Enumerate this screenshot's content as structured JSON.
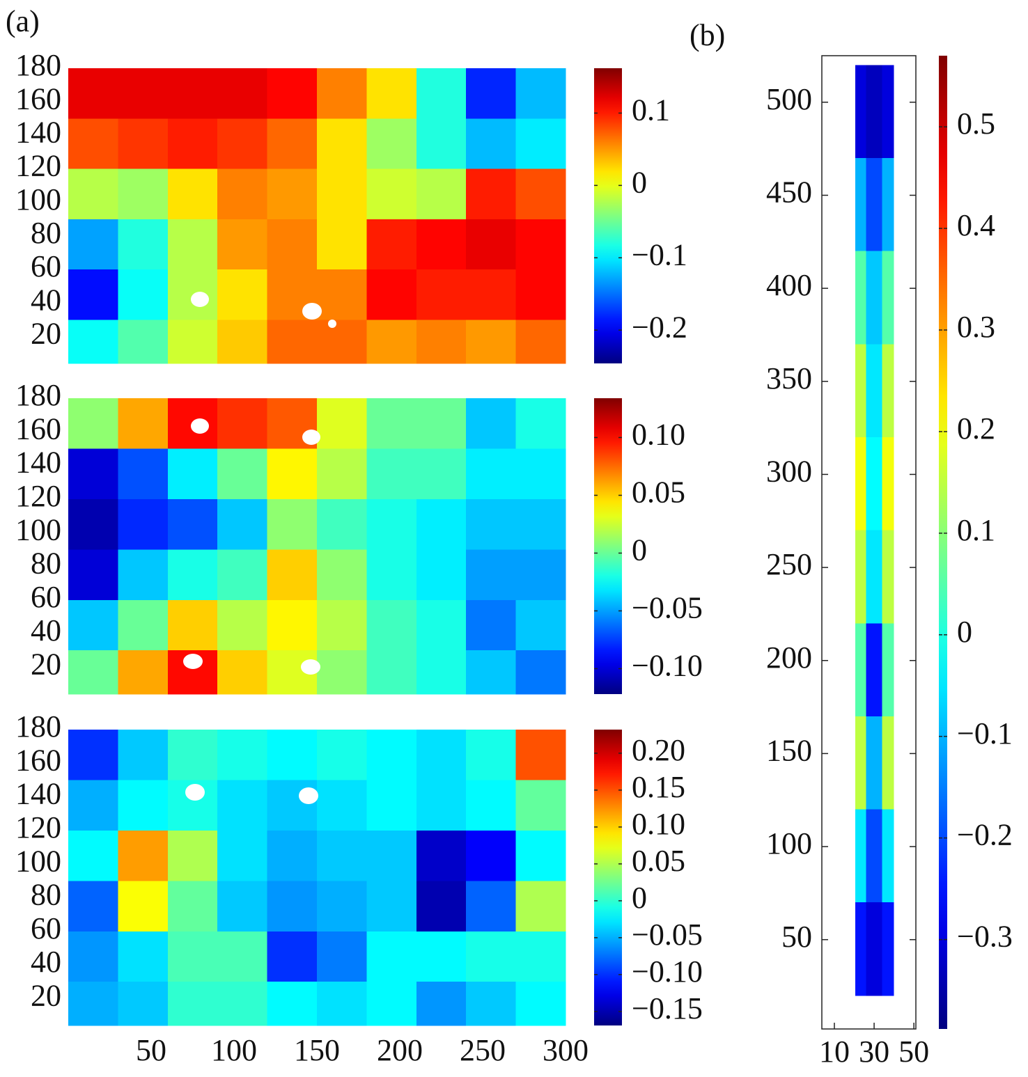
{
  "chart_data": [
    {
      "type": "heatmap",
      "panel_label": "(a)",
      "colormap": "jet",
      "x_edges": [
        0,
        30,
        60,
        90,
        120,
        150,
        180,
        210,
        240,
        270,
        300
      ],
      "y_edges": [
        180,
        150,
        120,
        90,
        60,
        30,
        4
      ],
      "z": [
        [
          0.12,
          0.12,
          0.12,
          0.12,
          0.11,
          0.06,
          0.02,
          -0.08,
          -0.18,
          -0.12
        ],
        [
          0.08,
          0.09,
          0.1,
          0.09,
          0.07,
          0.02,
          -0.03,
          -0.08,
          -0.12,
          -0.1
        ],
        [
          -0.02,
          -0.03,
          0.02,
          0.06,
          0.05,
          0.02,
          -0.01,
          -0.02,
          0.1,
          0.08
        ],
        [
          -0.13,
          -0.08,
          -0.02,
          0.05,
          0.06,
          0.02,
          0.1,
          0.11,
          0.12,
          0.11
        ],
        [
          -0.19,
          -0.09,
          -0.02,
          0.02,
          0.06,
          0.06,
          0.11,
          0.1,
          0.1,
          0.11
        ],
        [
          -0.09,
          -0.06,
          -0.01,
          0.03,
          0.07,
          0.07,
          0.05,
          0.06,
          0.05,
          0.07
        ]
      ],
      "xlim": [
        0,
        300
      ],
      "ylim": [
        4,
        180
      ],
      "yticks": [
        20,
        40,
        60,
        80,
        100,
        120,
        140,
        160,
        180
      ],
      "clim": [
        -0.246,
        0.162
      ],
      "cticks": [
        0.1,
        0,
        {
          "value": -0.1,
          "label": "−0.1"
        },
        {
          "value": -0.2,
          "label": "−0.2"
        }
      ]
    },
    {
      "type": "heatmap",
      "colormap": "jet",
      "x_edges": [
        0,
        30,
        60,
        90,
        120,
        150,
        180,
        210,
        240,
        270,
        300
      ],
      "y_edges": [
        180,
        150,
        120,
        90,
        60,
        30,
        4
      ],
      "z": [
        [
          0.01,
          0.06,
          0.1,
          0.09,
          0.08,
          0.03,
          0.0,
          0.0,
          -0.04,
          -0.02
        ],
        [
          -0.1,
          -0.07,
          -0.03,
          0.0,
          0.04,
          0.02,
          -0.01,
          -0.01,
          -0.03,
          -0.03
        ],
        [
          -0.11,
          -0.08,
          -0.07,
          -0.04,
          0.01,
          -0.01,
          -0.02,
          -0.03,
          -0.04,
          -0.04
        ],
        [
          -0.1,
          -0.04,
          -0.02,
          -0.01,
          0.05,
          0.01,
          -0.02,
          -0.03,
          -0.05,
          -0.05
        ],
        [
          -0.04,
          0.0,
          0.05,
          0.02,
          0.04,
          0.02,
          -0.01,
          -0.02,
          -0.06,
          -0.04
        ],
        [
          0.0,
          0.06,
          0.1,
          0.05,
          0.03,
          0.01,
          -0.01,
          -0.02,
          -0.04,
          -0.06
        ]
      ],
      "xlim": [
        0,
        300
      ],
      "ylim": [
        4,
        180
      ],
      "yticks": [
        20,
        40,
        60,
        80,
        100,
        120,
        140,
        160,
        180
      ],
      "clim": [
        -0.122,
        0.134
      ],
      "cticks": [
        {
          "value": 0.1,
          "label": "0.10"
        },
        0.05,
        0,
        {
          "value": -0.05,
          "label": "−0.05"
        },
        {
          "value": -0.1,
          "label": "−0.10"
        }
      ]
    },
    {
      "type": "heatmap",
      "colormap": "jet",
      "x_edges": [
        0,
        30,
        60,
        90,
        120,
        150,
        180,
        210,
        240,
        270,
        300
      ],
      "y_edges": [
        180,
        150,
        120,
        90,
        60,
        30,
        4
      ],
      "z": [
        [
          -0.1,
          -0.04,
          0.0,
          -0.01,
          -0.02,
          -0.01,
          -0.02,
          -0.03,
          -0.01,
          0.15
        ],
        [
          -0.05,
          -0.02,
          -0.01,
          -0.03,
          -0.04,
          -0.03,
          -0.02,
          -0.03,
          -0.02,
          0.02
        ],
        [
          -0.02,
          0.12,
          0.05,
          -0.03,
          -0.05,
          -0.04,
          -0.04,
          -0.14,
          -0.12,
          -0.02
        ],
        [
          -0.08,
          0.08,
          0.02,
          -0.04,
          -0.06,
          -0.05,
          -0.04,
          -0.15,
          -0.08,
          0.05
        ],
        [
          -0.06,
          -0.03,
          0.01,
          0.01,
          -0.1,
          -0.07,
          -0.02,
          -0.02,
          -0.01,
          -0.01
        ],
        [
          -0.05,
          -0.04,
          0.0,
          0.0,
          -0.02,
          -0.03,
          -0.02,
          -0.06,
          -0.04,
          -0.02
        ]
      ],
      "xlim": [
        0,
        300
      ],
      "ylim": [
        4,
        180
      ],
      "xticks": [
        50,
        100,
        150,
        200,
        250,
        300
      ],
      "yticks": [
        20,
        40,
        60,
        80,
        100,
        120,
        140,
        160,
        180
      ],
      "clim": [
        -0.169,
        0.232
      ],
      "cticks": [
        {
          "value": 0.2,
          "label": "0.20"
        },
        0.15,
        {
          "value": 0.1,
          "label": "0.10"
        },
        0.05,
        0,
        {
          "value": -0.05,
          "label": "−0.05"
        },
        {
          "value": -0.1,
          "label": "−0.10"
        },
        {
          "value": -0.15,
          "label": "−0.15"
        }
      ]
    },
    {
      "type": "heatmap",
      "panel_label": "(b)",
      "colormap": "jet",
      "frame": true,
      "x_edges": [
        20.5,
        26,
        34,
        39.8
      ],
      "y_edges": [
        520,
        470,
        420,
        370,
        320,
        270,
        220,
        170,
        120,
        70,
        20
      ],
      "z": [
        [
          -0.3,
          -0.33,
          -0.3
        ],
        [
          -0.1,
          -0.2,
          -0.1
        ],
        [
          0.05,
          -0.08,
          0.05
        ],
        [
          0.15,
          -0.05,
          0.15
        ],
        [
          0.2,
          -0.03,
          0.2
        ],
        [
          0.15,
          -0.05,
          0.15
        ],
        [
          0.05,
          -0.25,
          0.05
        ],
        [
          0.15,
          -0.1,
          0.15
        ],
        [
          -0.05,
          -0.2,
          -0.05
        ],
        [
          -0.25,
          -0.3,
          -0.25
        ]
      ],
      "xlim": [
        3.7,
        51
      ],
      "ylim": [
        2,
        525
      ],
      "xticks": [
        10,
        30,
        50
      ],
      "yticks": [
        50,
        100,
        150,
        200,
        250,
        300,
        350,
        400,
        450,
        500
      ],
      "clim": [
        -0.388,
        0.57
      ],
      "cticks": [
        0.5,
        0.4,
        0.3,
        0.2,
        0.1,
        0,
        {
          "value": -0.1,
          "label": "−0.1"
        },
        {
          "value": -0.2,
          "label": "−0.2"
        },
        {
          "value": -0.3,
          "label": "−0.3"
        }
      ]
    }
  ]
}
